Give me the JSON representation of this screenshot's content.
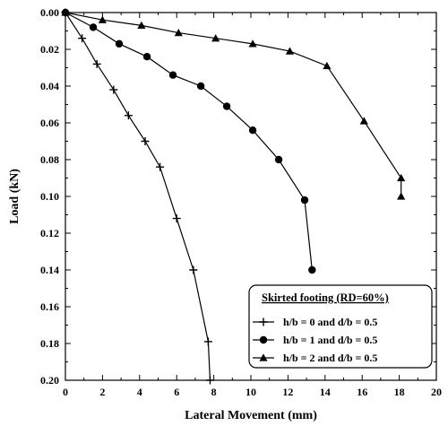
{
  "chart_data": {
    "type": "line",
    "xlabel": "Lateral Movement (mm)",
    "ylabel": "Load (kN)",
    "xlim": [
      0,
      20
    ],
    "ylim": [
      0,
      0.2
    ],
    "y_axis_inverted": true,
    "x_axis_position": "top-zero, labels at bottom",
    "xticks": [
      "0",
      "2",
      "4",
      "6",
      "8",
      "10",
      "12",
      "14",
      "16",
      "18",
      "20"
    ],
    "yticks": [
      "0.00",
      "0.02",
      "0.04",
      "0.06",
      "0.08",
      "0.10",
      "0.12",
      "0.14",
      "0.16",
      "0.18",
      "0.20"
    ],
    "grid": false,
    "legend": {
      "title": "Skirted footing (RD=60%)",
      "placement": "bottom-right"
    },
    "series": [
      {
        "name": "h/b = 0 and d/b = 0.5",
        "marker": "plus",
        "color": "#000000",
        "x": [
          0,
          0.9,
          1.7,
          2.6,
          3.4,
          4.3,
          5.1,
          6.0,
          6.9,
          7.7,
          7.8
        ],
        "y": [
          0,
          0.014,
          0.028,
          0.042,
          0.056,
          0.07,
          0.084,
          0.112,
          0.14,
          0.179,
          0.2
        ]
      },
      {
        "name": "h/b = 1 and d/b = 0.5",
        "marker": "circle",
        "color": "#000000",
        "x": [
          0,
          1.5,
          2.9,
          4.4,
          5.8,
          7.3,
          8.7,
          10.1,
          11.5,
          12.9,
          13.3
        ],
        "y": [
          0,
          0.008,
          0.017,
          0.024,
          0.034,
          0.04,
          0.051,
          0.064,
          0.08,
          0.102,
          0.14
        ]
      },
      {
        "name": "h/b = 2 and d/b = 0.5",
        "marker": "triangle",
        "color": "#000000",
        "x": [
          0,
          2.0,
          4.1,
          6.1,
          8.1,
          10.1,
          12.1,
          14.1,
          16.1,
          18.1,
          18.1
        ],
        "y": [
          0,
          0.004,
          0.007,
          0.011,
          0.014,
          0.017,
          0.021,
          0.029,
          0.059,
          0.09,
          0.1
        ]
      }
    ]
  }
}
